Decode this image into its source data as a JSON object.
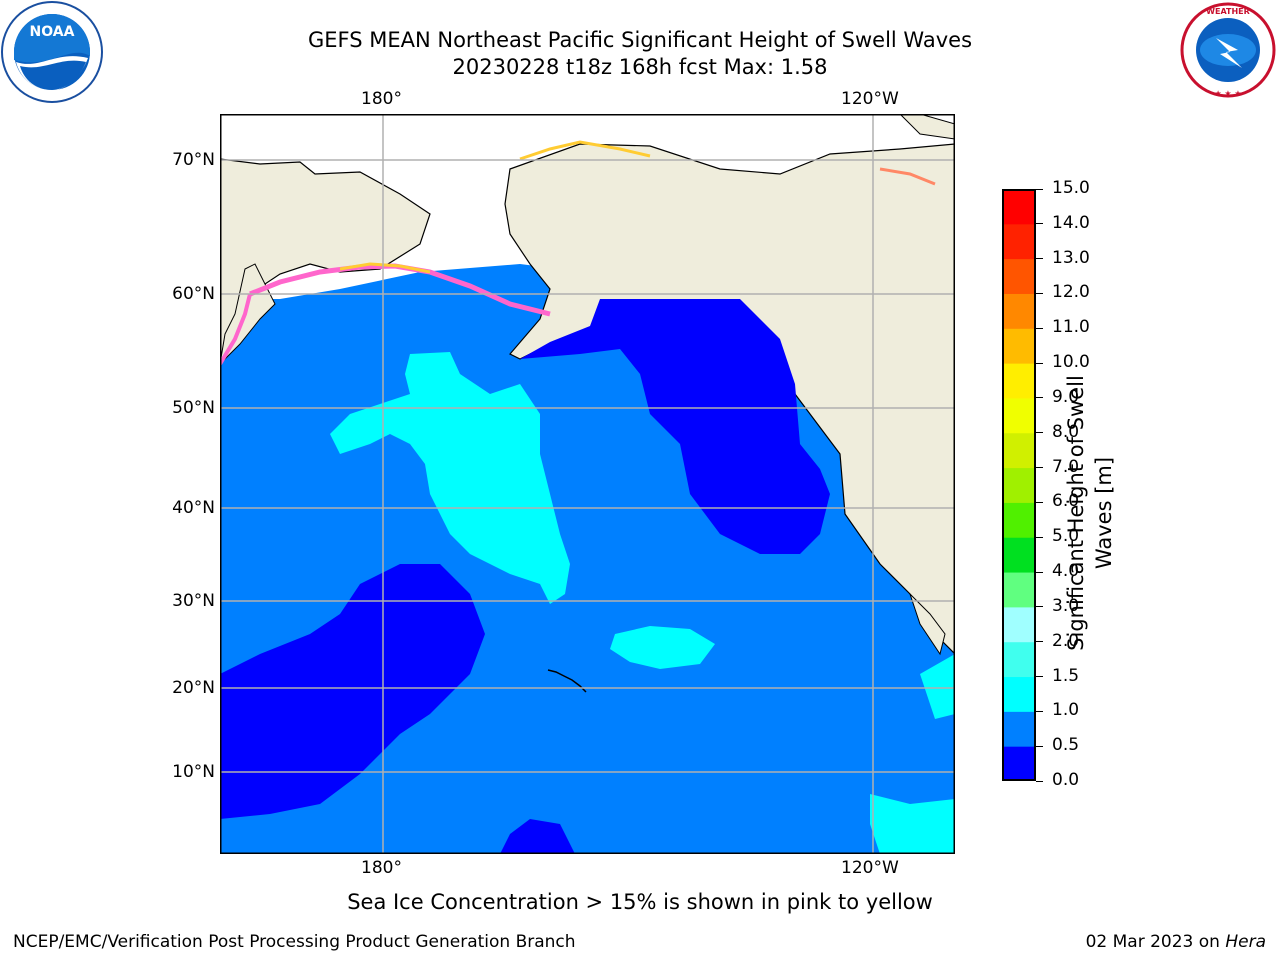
{
  "header": {
    "title_line1": "GEFS MEAN Northeast Pacific Significant Height of Swell Waves",
    "title_line2": "20230228 t18z 168h fcst   Max: 1.58"
  },
  "map": {
    "lon_ticks_top": [
      "180°",
      "120°W"
    ],
    "lon_ticks_bottom": [
      "180°",
      "120°W"
    ],
    "lat_ticks": [
      "70°N",
      "60°N",
      "50°N",
      "40°N",
      "30°N",
      "20°N",
      "10°N"
    ],
    "colors": {
      "land": "#efeddc",
      "ice_free_white": "#ffffff",
      "sea_ice_pink": "#ff66cc",
      "sea_ice_yellow": "#ffcc33"
    }
  },
  "colorbar": {
    "title": "Significant Height of Swell Waves [m]",
    "title_line1": "Significant Height of Swell",
    "title_line2": "Waves [m]",
    "ticks": [
      "0.0",
      "0.5",
      "1.0",
      "1.5",
      "2.0",
      "3.0",
      "4.0",
      "5.0",
      "6.0",
      "7.0",
      "8.0",
      "9.0",
      "10.0",
      "11.0",
      "12.0",
      "13.0",
      "14.0",
      "15.0"
    ],
    "colors": [
      "#0000ff",
      "#0080ff",
      "#00ffff",
      "#40ffee",
      "#a0ffff",
      "#60ff80",
      "#00e020",
      "#50f000",
      "#a0f000",
      "#d0f000",
      "#f0ff00",
      "#ffee00",
      "#ffbb00",
      "#ff8800",
      "#ff5500",
      "#ff2200",
      "#ff0000"
    ]
  },
  "logos": {
    "left": "noa-logo",
    "right": "national-weather-service-logo"
  },
  "note": "Sea Ice Concentration > 15% is shown in pink to yellow",
  "footer": {
    "left": "NCEP/EMC/Verification Post Processing Product Generation Branch",
    "right_date": "02 Mar 2023 on ",
    "right_host": "Hera"
  }
}
